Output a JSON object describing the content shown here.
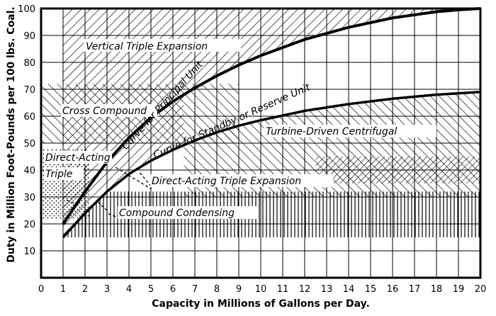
{
  "chart_data": {
    "type": "line",
    "xlabel": "Capacity in Millions of Gallons per Day.",
    "ylabel": "Duty in Million Foot-Pounds per 100 lbs. Coal.",
    "xlim": [
      0,
      20
    ],
    "ylim": [
      0,
      100
    ],
    "x_ticks": [
      "0",
      "1",
      "2",
      "3",
      "4",
      "5",
      "6",
      "7",
      "8",
      "9",
      "10",
      "11",
      "12",
      "13",
      "14",
      "15",
      "16",
      "17",
      "18",
      "19",
      "20"
    ],
    "y_ticks": [
      "10",
      "20",
      "30",
      "40",
      "50",
      "60",
      "70",
      "80",
      "90",
      "100"
    ],
    "grid": true,
    "series": [
      {
        "name": "Curve for Principal Unit",
        "x": [
          1,
          2,
          3,
          4,
          5,
          6,
          7,
          8,
          9,
          10,
          12,
          14,
          16,
          18,
          19,
          20
        ],
        "y": [
          20,
          32,
          43,
          52,
          59.5,
          65.5,
          70.5,
          75,
          79,
          82.5,
          88.5,
          93,
          96.5,
          98.8,
          99.5,
          100
        ]
      },
      {
        "name": "Curve for Standby or Reserve Unit",
        "x": [
          1,
          2,
          3,
          4,
          5,
          6,
          7,
          8,
          9,
          10,
          12,
          14,
          16,
          18,
          20
        ],
        "y": [
          15,
          24,
          32,
          38.5,
          43.5,
          47.5,
          51,
          54,
          56.5,
          58.5,
          62,
          64.5,
          66.5,
          68,
          69
        ]
      }
    ],
    "regions": [
      {
        "label": "Vertical Triple Expansion"
      },
      {
        "label": "Cross Compound"
      },
      {
        "label": "Turbine-Driven Centrifugal"
      },
      {
        "label": "Direct-Acting Triple",
        "label_lines": [
          "Direct-Acting",
          "Triple"
        ]
      },
      {
        "label": "Direct-Acting Triple Expansion"
      },
      {
        "label": "Compound Condensing"
      }
    ]
  }
}
